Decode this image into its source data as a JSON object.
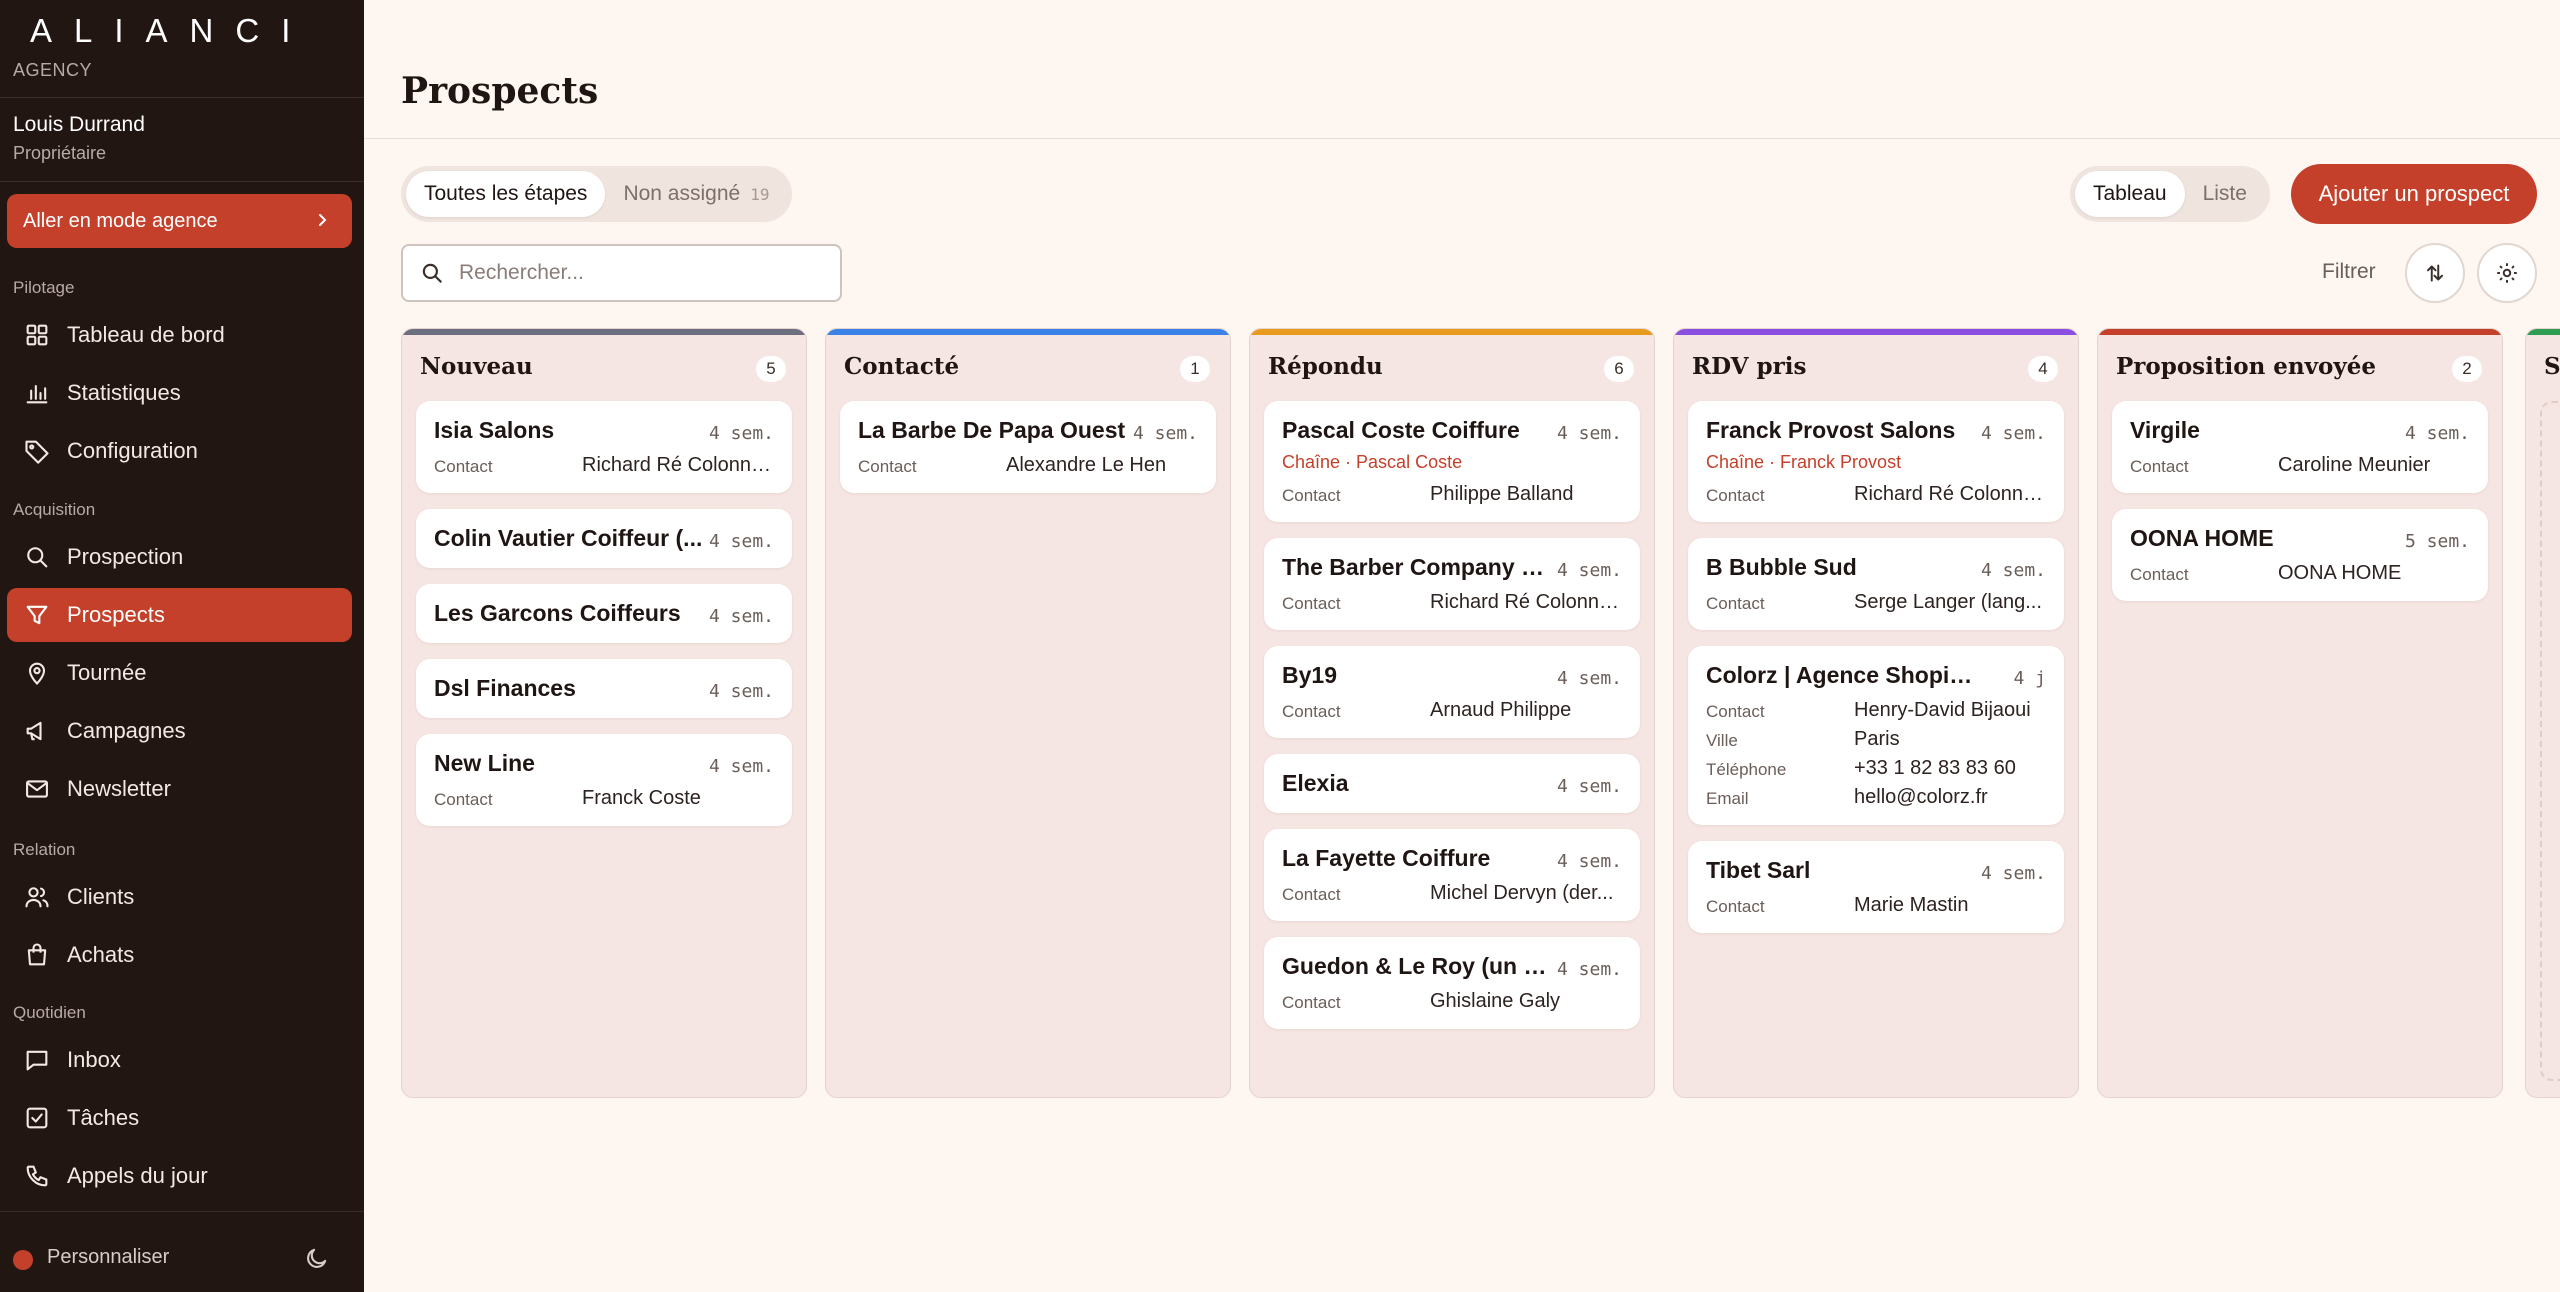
{
  "sidebar": {
    "brand": "ALIANCI",
    "brand_sub": "AGENCY",
    "user": {
      "name": "Louis Durrand",
      "role": "Propriétaire"
    },
    "agency_button": "Aller en mode agence",
    "sections": {
      "pilotage": "Pilotage",
      "acquisition": "Acquisition",
      "relation": "Relation",
      "quotidien": "Quotidien"
    },
    "items": {
      "dashboard": "Tableau de bord",
      "stats": "Statistiques",
      "config": "Configuration",
      "prospection": "Prospection",
      "prospects": "Prospects",
      "tour": "Tournée",
      "campaigns": "Campagnes",
      "newsletter": "Newsletter",
      "clients": "Clients",
      "purchases": "Achats",
      "inbox": "Inbox",
      "tasks": "Tâches",
      "calls": "Appels du jour"
    },
    "footer_label": "Personnaliser"
  },
  "header": {
    "title": "Prospects"
  },
  "toolbar": {
    "stage_all": "Toutes les étapes",
    "unassigned": "Non assigné",
    "unassigned_count": "19",
    "view_board": "Tableau",
    "view_list": "Liste",
    "add_button": "Ajouter un prospect",
    "search_placeholder": "Rechercher...",
    "filter_label": "Filtrer"
  },
  "colors": {
    "accent": "#c4402a",
    "sidebar_bg": "#221613",
    "column_bg": "#f6e6e3"
  },
  "columns": [
    {
      "title": "Nouveau",
      "count": "5",
      "color": "#6b6f80",
      "cards": [
        {
          "name": "Isia Salons",
          "age": "4 sem.",
          "rows": [
            {
              "label": "Contact",
              "value": "Richard Ré Colonna..."
            }
          ]
        },
        {
          "name": "Colin Vautier Coiffeur (...",
          "age": "4 sem.",
          "rows": []
        },
        {
          "name": "Les Garcons Coiffeurs",
          "age": "4 sem.",
          "rows": []
        },
        {
          "name": "Dsl Finances",
          "age": "4 sem.",
          "rows": []
        },
        {
          "name": "New Line",
          "age": "4 sem.",
          "rows": [
            {
              "label": "Contact",
              "value": "Franck Coste"
            }
          ]
        }
      ]
    },
    {
      "title": "Contacté",
      "count": "1",
      "color": "#3b82e6",
      "cards": [
        {
          "name": "La Barbe De Papa Ouest",
          "age": "4 sem.",
          "rows": [
            {
              "label": "Contact",
              "value": "Alexandre Le Hen"
            }
          ]
        }
      ]
    },
    {
      "title": "Répondu",
      "count": "6",
      "color": "#e89a1c",
      "cards": [
        {
          "name": "Pascal Coste Coiffure",
          "age": "4 sem.",
          "chain": "Chaîne · Pascal Coste",
          "rows": [
            {
              "label": "Contact",
              "value": "Philippe Balland"
            }
          ]
        },
        {
          "name": "The Barber Company S...",
          "age": "4 sem.",
          "rows": [
            {
              "label": "Contact",
              "value": "Richard Ré Colonna..."
            }
          ]
        },
        {
          "name": "By19",
          "age": "4 sem.",
          "rows": [
            {
              "label": "Contact",
              "value": "Arnaud Philippe"
            }
          ]
        },
        {
          "name": "Elexia",
          "age": "4 sem.",
          "rows": []
        },
        {
          "name": "La Fayette Coiffure",
          "age": "4 sem.",
          "rows": [
            {
              "label": "Contact",
              "value": "Michel Dervyn (der..."
            }
          ]
        },
        {
          "name": "Guedon & Le Roy (un G...",
          "age": "4 sem.",
          "rows": [
            {
              "label": "Contact",
              "value": "Ghislaine Galy"
            }
          ]
        }
      ]
    },
    {
      "title": "RDV pris",
      "count": "4",
      "color": "#8b4fe0",
      "cards": [
        {
          "name": "Franck Provost Salons",
          "age": "4 sem.",
          "chain": "Chaîne · Franck Provost",
          "rows": [
            {
              "label": "Contact",
              "value": "Richard Ré Colonna..."
            }
          ]
        },
        {
          "name": "B Bubble Sud",
          "age": "4 sem.",
          "rows": [
            {
              "label": "Contact",
              "value": "Serge Langer (lang..."
            }
          ]
        },
        {
          "name": "Colorz | Agence Shopify Pl...",
          "age": "4 j",
          "rows": [
            {
              "label": "Contact",
              "value": "Henry-David Bijaoui"
            },
            {
              "label": "Ville",
              "value": "Paris"
            },
            {
              "label": "Téléphone",
              "value": "+33 1 82 83 83 60"
            },
            {
              "label": "Email",
              "value": "hello@colorz.fr"
            }
          ]
        },
        {
          "name": "Tibet Sarl",
          "age": "4 sem.",
          "rows": [
            {
              "label": "Contact",
              "value": "Marie Mastin"
            }
          ]
        }
      ]
    },
    {
      "title": "Proposition envoyée",
      "count": "2",
      "color": "#c4402a",
      "cards": [
        {
          "name": "Virgile",
          "age": "4 sem.",
          "rows": [
            {
              "label": "Contact",
              "value": "Caroline Meunier"
            }
          ]
        },
        {
          "name": "OONA HOME",
          "age": "5 sem.",
          "rows": [
            {
              "label": "Contact",
              "value": "OONA HOME"
            }
          ]
        }
      ]
    }
  ],
  "partial_column": {
    "title": "S"
  }
}
